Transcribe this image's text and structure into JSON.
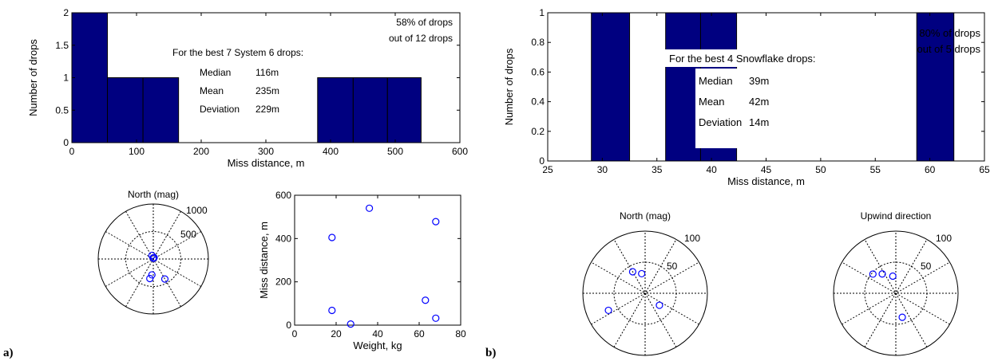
{
  "colors": {
    "bar": "#000080",
    "marker": "#0000ff",
    "axis": "#000000",
    "background": "#ffffff"
  },
  "chart_data": [
    {
      "panel": "a",
      "type": "bar",
      "xlabel": "Miss distance, m",
      "ylabel": "Number of drops",
      "xlim": [
        0,
        600
      ],
      "ylim": [
        0,
        2
      ],
      "xticks": [
        "0",
        "100",
        "200",
        "300",
        "400",
        "500",
        "600"
      ],
      "yticks": [
        "0",
        "0.5",
        "1",
        "1.5",
        "2"
      ],
      "bins": [
        {
          "x0": 0,
          "x1": 55,
          "value": 2
        },
        {
          "x0": 55,
          "x1": 110,
          "value": 1
        },
        {
          "x0": 110,
          "x1": 165,
          "value": 1
        },
        {
          "x0": 380,
          "x1": 435,
          "value": 1
        },
        {
          "x0": 435,
          "x1": 488,
          "value": 1
        },
        {
          "x0": 488,
          "x1": 540,
          "value": 1
        }
      ],
      "annotation_pct": [
        "58% of drops",
        "out of 12 drops"
      ],
      "stats_title": "For the best 7 System 6 drops:",
      "stats": [
        {
          "label": "Median",
          "value": "116m"
        },
        {
          "label": "Mean",
          "value": "235m"
        },
        {
          "label": "Deviation",
          "value": "229m"
        }
      ]
    },
    {
      "panel": "a",
      "type": "polar",
      "title": "North (mag)",
      "rmax": 1000,
      "ring_labels": [
        "500",
        "1000"
      ],
      "points": [
        {
          "theta_deg": 110,
          "r": 70
        },
        {
          "theta_deg": 95,
          "r": 20
        },
        {
          "theta_deg": 80,
          "r": 15
        },
        {
          "theta_deg": 60,
          "r": 30
        },
        {
          "theta_deg": -95,
          "r": 290
        },
        {
          "theta_deg": -100,
          "r": 360
        },
        {
          "theta_deg": -60,
          "r": 420
        }
      ]
    },
    {
      "panel": "a",
      "type": "scatter",
      "xlabel": "Weight, kg",
      "ylabel": "Miss distance, m",
      "xlim": [
        0,
        80
      ],
      "ylim": [
        0,
        600
      ],
      "xticks": [
        "0",
        "20",
        "40",
        "60",
        "80"
      ],
      "yticks": [
        "0",
        "200",
        "400",
        "600"
      ],
      "points": [
        {
          "x": 18,
          "y": 405
        },
        {
          "x": 18,
          "y": 68
        },
        {
          "x": 27,
          "y": 5
        },
        {
          "x": 36,
          "y": 540
        },
        {
          "x": 63,
          "y": 115
        },
        {
          "x": 68,
          "y": 478
        },
        {
          "x": 68,
          "y": 32
        }
      ]
    },
    {
      "panel": "b",
      "type": "bar",
      "xlabel": "Miss distance, m",
      "ylabel": "Number of drops",
      "xlim": [
        25,
        65
      ],
      "ylim": [
        0,
        1
      ],
      "xticks": [
        "25",
        "30",
        "35",
        "40",
        "45",
        "50",
        "55",
        "60",
        "65"
      ],
      "yticks": [
        "0",
        "0.2",
        "0.4",
        "0.6",
        "0.8",
        "1"
      ],
      "bins": [
        {
          "x0": 29,
          "x1": 32.5,
          "value": 1
        },
        {
          "x0": 35.8,
          "x1": 39,
          "value": 1
        },
        {
          "x0": 39,
          "x1": 42.3,
          "value": 1
        },
        {
          "x0": 58.8,
          "x1": 62.2,
          "value": 1
        }
      ],
      "annotation_pct": [
        "80% of drops",
        "out of 5 drops"
      ],
      "stats_title": "For the best 4 Snowflake drops:",
      "stats": [
        {
          "label": "Median",
          "value": "39m"
        },
        {
          "label": "Mean",
          "value": "42m"
        },
        {
          "label": "Deviation",
          "value": "14m"
        }
      ]
    },
    {
      "panel": "b",
      "type": "polar",
      "title": "North (mag)",
      "rmax": 100,
      "ring_labels": [
        "50",
        "100"
      ],
      "points": [
        {
          "theta_deg": 120,
          "r": 40
        },
        {
          "theta_deg": 100,
          "r": 32
        },
        {
          "theta_deg": 205,
          "r": 65
        },
        {
          "theta_deg": -40,
          "r": 30
        }
      ]
    },
    {
      "panel": "b",
      "type": "polar",
      "title": "Upwind direction",
      "rmax": 100,
      "ring_labels": [
        "50",
        "100"
      ],
      "points": [
        {
          "theta_deg": 140,
          "r": 48
        },
        {
          "theta_deg": 125,
          "r": 38
        },
        {
          "theta_deg": 100,
          "r": 28
        },
        {
          "theta_deg": -75,
          "r": 40
        }
      ]
    }
  ],
  "panel_labels": [
    "a)",
    "b)"
  ]
}
